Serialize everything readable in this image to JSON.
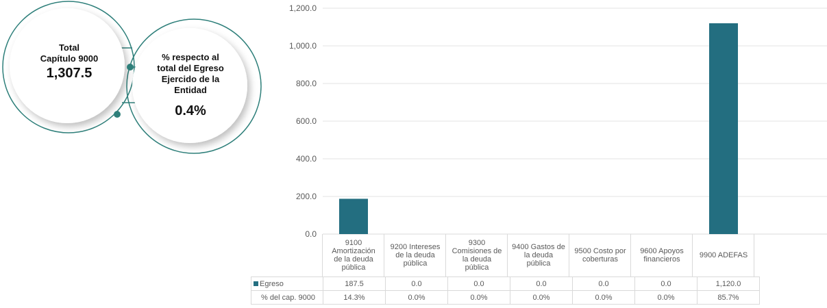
{
  "kpi": {
    "total_title_line1": "Total",
    "total_title_line2": "Capítulo 9000",
    "total_value": "1,307.5",
    "percent_title_line1": "% respecto al",
    "percent_title_line2": "total del Egreso",
    "percent_title_line3": "Ejercido de la",
    "percent_title_line4": "Entidad",
    "percent_value": "0.4%"
  },
  "colors": {
    "accent": "#236e80",
    "circle_stroke": "#2e7f7a",
    "grid": "#e3e3e3"
  },
  "chart_data": {
    "type": "bar",
    "categories": [
      "9100 Amortización de la deuda pública",
      "9200 Intereses de la deuda pública",
      "9300 Comisiones de la deuda pública",
      "9400 Gastos de la deuda pública",
      "9500 Costo por coberturas",
      "9600 Apoyos financieros",
      "9900 ADEFAS"
    ],
    "series": [
      {
        "name": "Egreso",
        "values": [
          187.5,
          0.0,
          0.0,
          0.0,
          0.0,
          0.0,
          1120.0
        ],
        "color": "#236e80"
      }
    ],
    "ylim": [
      0,
      1200
    ],
    "yticks": [
      "0.0",
      "200.0",
      "400.0",
      "600.0",
      "800.0",
      "1,000.0",
      "1,200.0"
    ],
    "grid": true,
    "legend": "data-table"
  },
  "table": {
    "rows": [
      {
        "label": "Egreso",
        "cells": [
          "187.5",
          "0.0",
          "0.0",
          "0.0",
          "0.0",
          "0.0",
          "1,120.0"
        ]
      },
      {
        "label": "% del cap. 9000",
        "cells": [
          "14.3%",
          "0.0%",
          "0.0%",
          "0.0%",
          "0.0%",
          "0.0%",
          "85.7%"
        ]
      }
    ],
    "category_headers": [
      [
        "9100",
        "Amortización",
        "de la deuda",
        "pública"
      ],
      [
        "9200 Intereses",
        "de la deuda",
        "pública"
      ],
      [
        "9300",
        "Comisiones  de",
        "la deuda",
        "pública"
      ],
      [
        "9400 Gastos de",
        "la deuda",
        "pública"
      ],
      [
        "9500 Costo por",
        "coberturas"
      ],
      [
        "9600 Apoyos",
        "financieros"
      ],
      [
        "9900 ADEFAS"
      ]
    ]
  }
}
